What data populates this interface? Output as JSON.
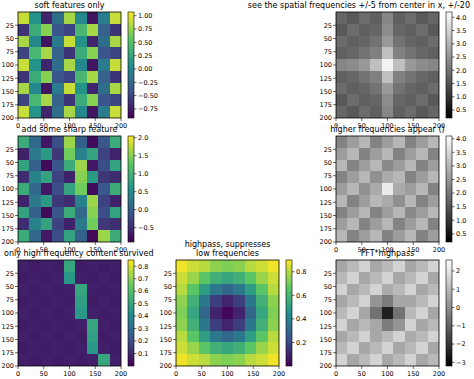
{
  "chart_data": [
    {
      "type": "heatmap",
      "title": "soft features only",
      "color": "viridis",
      "xlim": [
        0,
        200
      ],
      "ylim": [
        200,
        0
      ],
      "xticks": [
        0,
        50,
        100,
        150,
        200
      ],
      "yticks": [
        25,
        50,
        75,
        100,
        125,
        150,
        175,
        200
      ],
      "color_range": [
        -0.92,
        1.07
      ],
      "color_ticks": [
        {
          "value": -0.75,
          "label": "−0.75"
        },
        {
          "value": -0.5,
          "label": "−0.50"
        },
        {
          "value": -0.25,
          "label": "−0.25"
        },
        {
          "value": 0,
          "label": "0.00"
        },
        0.25,
        {
          "value": 0.5,
          "label": "0.50"
        },
        0.75,
        {
          "value": 1,
          "label": "1.00"
        }
      ],
      "cells": [
        [
          0.9,
          0.1,
          -0.7,
          -0.2,
          0.8,
          0.0,
          -0.8,
          -0.1,
          0.9
        ],
        [
          -0.6,
          0.3,
          0.7,
          -0.4,
          -0.5,
          0.4,
          0.8,
          -0.3,
          -0.6
        ],
        [
          0.8,
          0.0,
          -0.8,
          -0.1,
          0.9,
          0.1,
          -0.7,
          -0.2,
          0.8
        ],
        [
          -0.5,
          0.4,
          0.8,
          -0.3,
          -0.6,
          0.3,
          0.7,
          -0.4,
          -0.5
        ],
        [
          0.9,
          0.1,
          -0.7,
          -0.2,
          0.8,
          0.0,
          -0.8,
          -0.1,
          0.9
        ],
        [
          -0.6,
          0.3,
          0.7,
          -0.4,
          -0.5,
          0.4,
          0.8,
          -0.3,
          -0.6
        ],
        [
          0.8,
          0.0,
          -0.8,
          -0.1,
          0.9,
          0.1,
          -0.7,
          -0.2,
          0.8
        ],
        [
          -0.5,
          0.4,
          0.8,
          -0.3,
          -0.6,
          0.3,
          0.7,
          -0.4,
          -0.5
        ],
        [
          0.9,
          0.1,
          -0.7,
          -0.2,
          0.8,
          0.0,
          -0.8,
          -0.1,
          0.9
        ]
      ]
    },
    {
      "type": "heatmap",
      "title": "see the spatial frequencies +/-5 from center in x, +/-20",
      "color": "gray",
      "xlim": [
        0,
        200
      ],
      "ylim": [
        200,
        0
      ],
      "xticks": [
        0,
        50,
        100,
        150,
        200
      ],
      "yticks": [
        25,
        50,
        75,
        100,
        125,
        150,
        175,
        200
      ],
      "color_range": [
        0.2,
        4.2
      ],
      "color_ticks": [
        0.5,
        {
          "value": 1,
          "label": "1.0"
        },
        1.5,
        {
          "value": 2,
          "label": "2.0"
        },
        2.5,
        {
          "value": 3,
          "label": "3.0"
        },
        3.5,
        {
          "value": 4,
          "label": "4.0"
        }
      ],
      "cells": [
        [
          1.8,
          1.6,
          1.9,
          1.7,
          2.3,
          1.7,
          1.9,
          1.6,
          1.8
        ],
        [
          1.6,
          1.9,
          1.7,
          1.8,
          2.4,
          1.8,
          1.7,
          1.9,
          1.6
        ],
        [
          1.9,
          1.7,
          1.8,
          2.0,
          2.6,
          2.0,
          1.8,
          1.7,
          1.9
        ],
        [
          1.7,
          1.8,
          2.0,
          2.2,
          3.2,
          2.2,
          2.0,
          1.8,
          1.7
        ],
        [
          2.3,
          2.4,
          2.6,
          3.2,
          4.0,
          3.2,
          2.6,
          2.4,
          2.3
        ],
        [
          1.7,
          1.8,
          2.0,
          2.2,
          3.2,
          2.2,
          2.0,
          1.8,
          1.7
        ],
        [
          1.9,
          1.7,
          1.8,
          2.0,
          2.6,
          2.0,
          1.8,
          1.7,
          1.9
        ],
        [
          1.6,
          1.9,
          1.7,
          1.8,
          2.4,
          1.8,
          1.7,
          1.9,
          1.6
        ],
        [
          1.8,
          1.6,
          1.9,
          1.7,
          2.3,
          1.7,
          1.9,
          1.6,
          1.8
        ]
      ]
    },
    {
      "type": "heatmap",
      "title": "add some sharp feature",
      "color": "viridis",
      "xlim": [
        0,
        200
      ],
      "ylim": [
        200,
        0
      ],
      "xticks": [
        0,
        50,
        100,
        150,
        200
      ],
      "yticks": [
        25,
        50,
        75,
        100,
        125,
        150,
        175,
        200
      ],
      "color_range": [
        -0.9,
        2.05
      ],
      "color_ticks": [
        {
          "value": -0.5,
          "label": "−0.5"
        },
        {
          "value": 0,
          "label": "0.0"
        },
        0.5,
        {
          "value": 1,
          "label": "1.0"
        },
        1.5,
        {
          "value": 2,
          "label": "2.0"
        }
      ],
      "cells": [
        [
          0.9,
          0.1,
          -0.7,
          -0.2,
          1.6,
          0.0,
          -0.8,
          -0.1,
          0.9
        ],
        [
          -0.6,
          0.3,
          0.7,
          -0.4,
          1.4,
          0.4,
          0.8,
          -0.3,
          -0.6
        ],
        [
          0.8,
          0.0,
          -0.8,
          -0.1,
          0.9,
          1.6,
          -0.7,
          -0.2,
          0.8
        ],
        [
          -0.5,
          0.4,
          0.8,
          -0.3,
          -0.6,
          1.5,
          0.7,
          -0.4,
          -0.5
        ],
        [
          0.9,
          0.1,
          -0.7,
          -0.2,
          0.8,
          1.4,
          -0.8,
          -0.1,
          0.9
        ],
        [
          -0.6,
          0.3,
          0.7,
          -0.4,
          -0.5,
          0.4,
          1.6,
          -0.3,
          -0.6
        ],
        [
          0.8,
          0.0,
          -0.8,
          -0.1,
          0.9,
          0.1,
          1.5,
          -0.2,
          0.8
        ],
        [
          -0.5,
          0.4,
          0.8,
          -0.3,
          -0.6,
          0.3,
          1.4,
          -0.4,
          -0.5
        ],
        [
          0.9,
          0.1,
          -0.7,
          -0.2,
          0.8,
          0.0,
          -0.8,
          1.6,
          0.9
        ]
      ]
    },
    {
      "type": "heatmap",
      "title": "higher frequencies appear ()",
      "color": "gray",
      "xlim": [
        0,
        200
      ],
      "ylim": [
        200,
        0
      ],
      "xticks": [
        0,
        50,
        100,
        150,
        200
      ],
      "yticks": [
        25,
        50,
        75,
        100,
        125,
        150,
        175,
        200
      ],
      "color_range": [
        0.2,
        4.1
      ],
      "color_ticks": [
        0.5,
        {
          "value": 1,
          "label": "1.0"
        },
        1.5,
        {
          "value": 2,
          "label": "2.0"
        },
        2.5,
        {
          "value": 3,
          "label": "3.0"
        },
        3.5,
        {
          "value": 4,
          "label": "4.0"
        }
      ],
      "cells": [
        [
          2.2,
          2.6,
          3.0,
          2.2,
          2.6,
          3.0,
          2.2,
          2.6,
          3.0
        ],
        [
          2.6,
          3.0,
          2.2,
          2.6,
          3.0,
          2.2,
          2.6,
          3.0,
          2.2
        ],
        [
          3.0,
          2.2,
          2.6,
          3.0,
          2.3,
          2.6,
          3.0,
          2.2,
          2.6
        ],
        [
          2.2,
          2.6,
          3.0,
          2.4,
          2.8,
          3.0,
          2.2,
          2.6,
          3.0
        ],
        [
          2.6,
          3.0,
          2.4,
          2.8,
          3.8,
          2.8,
          2.6,
          3.0,
          2.2
        ],
        [
          3.0,
          2.2,
          2.6,
          3.0,
          2.8,
          2.4,
          3.0,
          2.2,
          2.6
        ],
        [
          2.2,
          2.6,
          3.0,
          2.2,
          2.6,
          3.0,
          2.3,
          2.6,
          3.0
        ],
        [
          2.6,
          3.0,
          2.2,
          2.6,
          3.0,
          2.2,
          2.6,
          3.0,
          2.2
        ],
        [
          3.0,
          2.2,
          2.6,
          3.0,
          2.2,
          2.6,
          3.0,
          2.2,
          2.6
        ]
      ]
    },
    {
      "type": "heatmap",
      "title": "only high frequency content survived",
      "color": "viridis",
      "xlim": [
        0,
        200
      ],
      "ylim": [
        200,
        0
      ],
      "xticks": [
        0,
        50,
        100,
        150,
        200
      ],
      "yticks": [
        25,
        50,
        75,
        100,
        125,
        150,
        175,
        200
      ],
      "color_range": [
        0.0,
        0.85
      ],
      "color_ticks": [
        0.1,
        0.2,
        0.3,
        0.4,
        0.5,
        0.6,
        0.7,
        0.8
      ],
      "cells": [
        [
          0.08,
          0.07,
          0.08,
          0.07,
          0.5,
          0.07,
          0.08,
          0.07,
          0.08
        ],
        [
          0.07,
          0.08,
          0.07,
          0.08,
          0.45,
          0.08,
          0.07,
          0.08,
          0.07
        ],
        [
          0.08,
          0.07,
          0.08,
          0.07,
          0.08,
          0.5,
          0.08,
          0.07,
          0.08
        ],
        [
          0.07,
          0.08,
          0.07,
          0.08,
          0.07,
          0.48,
          0.07,
          0.08,
          0.07
        ],
        [
          0.08,
          0.07,
          0.08,
          0.07,
          0.08,
          0.45,
          0.08,
          0.07,
          0.08
        ],
        [
          0.07,
          0.08,
          0.07,
          0.08,
          0.07,
          0.08,
          0.5,
          0.08,
          0.07
        ],
        [
          0.08,
          0.07,
          0.08,
          0.07,
          0.08,
          0.07,
          0.48,
          0.07,
          0.08
        ],
        [
          0.07,
          0.08,
          0.07,
          0.08,
          0.07,
          0.08,
          0.45,
          0.08,
          0.07
        ],
        [
          0.08,
          0.07,
          0.08,
          0.07,
          0.08,
          0.07,
          0.08,
          0.5,
          0.08
        ]
      ]
    },
    {
      "type": "heatmap",
      "title": "highpass, suppresses\nlow frequencies",
      "color": "viridis",
      "xlim": [
        0,
        200
      ],
      "ylim": [
        200,
        0
      ],
      "xticks": [
        0,
        50,
        100,
        150,
        200
      ],
      "yticks": [
        25,
        50,
        75,
        100,
        125,
        150,
        175,
        200
      ],
      "color_range": [
        0.0,
        0.9
      ],
      "color_ticks": [
        0.2,
        0.4,
        0.6,
        0.8
      ],
      "cells": [
        [
          0.88,
          0.83,
          0.8,
          0.74,
          0.72,
          0.74,
          0.8,
          0.83,
          0.88
        ],
        [
          0.83,
          0.76,
          0.66,
          0.57,
          0.53,
          0.57,
          0.66,
          0.76,
          0.83
        ],
        [
          0.8,
          0.66,
          0.5,
          0.36,
          0.3,
          0.36,
          0.5,
          0.66,
          0.8
        ],
        [
          0.74,
          0.57,
          0.36,
          0.17,
          0.1,
          0.17,
          0.36,
          0.57,
          0.74
        ],
        [
          0.72,
          0.53,
          0.3,
          0.1,
          0.02,
          0.1,
          0.3,
          0.53,
          0.72
        ],
        [
          0.74,
          0.57,
          0.36,
          0.17,
          0.1,
          0.17,
          0.36,
          0.57,
          0.74
        ],
        [
          0.8,
          0.66,
          0.5,
          0.36,
          0.3,
          0.36,
          0.5,
          0.66,
          0.8
        ],
        [
          0.83,
          0.76,
          0.66,
          0.57,
          0.53,
          0.57,
          0.66,
          0.76,
          0.83
        ],
        [
          0.88,
          0.83,
          0.8,
          0.74,
          0.72,
          0.74,
          0.8,
          0.83,
          0.88
        ]
      ]
    },
    {
      "type": "heatmap",
      "title": "FFT*highpass",
      "color": "gray",
      "xlim": [
        0,
        200
      ],
      "ylim": [
        200,
        0
      ],
      "xticks": [
        0,
        50,
        100,
        150,
        200
      ],
      "yticks": [
        25,
        50,
        75,
        100,
        125,
        150,
        175,
        200
      ],
      "color_range": [
        -3.2,
        2.6
      ],
      "color_ticks": [
        {
          "value": -3,
          "label": "−3"
        },
        {
          "value": -2,
          "label": "−2"
        },
        {
          "value": -1,
          "label": "−1"
        },
        0,
        1,
        2
      ],
      "cells": [
        [
          0.6,
          1.0,
          1.6,
          0.6,
          1.0,
          1.6,
          0.6,
          1.0,
          1.6
        ],
        [
          1.0,
          1.6,
          0.6,
          1.0,
          1.6,
          0.6,
          1.0,
          1.6,
          0.6
        ],
        [
          1.6,
          0.6,
          1.0,
          1.6,
          0.7,
          1.0,
          1.6,
          0.6,
          1.0
        ],
        [
          0.6,
          1.0,
          1.6,
          0.2,
          -0.4,
          0.6,
          0.6,
          1.0,
          1.6
        ],
        [
          1.0,
          1.6,
          0.6,
          -0.6,
          -2.5,
          -0.6,
          1.0,
          1.6,
          0.6
        ],
        [
          1.6,
          0.6,
          1.0,
          0.6,
          -0.4,
          0.2,
          1.6,
          0.6,
          1.0
        ],
        [
          0.6,
          1.0,
          1.6,
          0.6,
          1.0,
          1.6,
          0.7,
          1.0,
          1.6
        ],
        [
          1.0,
          1.6,
          0.6,
          1.0,
          1.6,
          0.6,
          1.0,
          1.6,
          0.6
        ],
        [
          1.6,
          0.6,
          1.0,
          1.6,
          0.6,
          1.0,
          1.6,
          0.6,
          1.0
        ]
      ]
    }
  ]
}
